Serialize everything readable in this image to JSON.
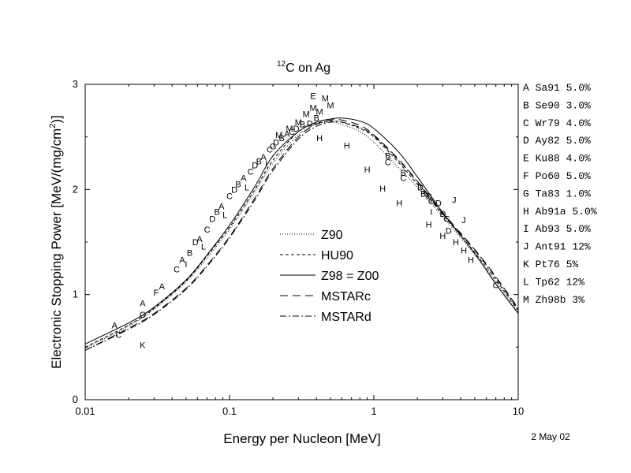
{
  "chart_data": {
    "type": "line",
    "title_prefix": "12",
    "title_main": "C on Ag",
    "xlabel": "Energy per Nucleon [MeV]",
    "ylabel_main": "Electronic Stopping Power [MeV/(mg/cm",
    "ylabel_sup": "2",
    "ylabel_end": ")]",
    "xscale": "log",
    "xlim": [
      0.01,
      10
    ],
    "ylim": [
      0,
      3
    ],
    "x_ticks": [
      {
        "v": 0.01,
        "label": "0.01"
      },
      {
        "v": 0.1,
        "label": "0.1"
      },
      {
        "v": 1,
        "label": "1"
      },
      {
        "v": 10,
        "label": "10"
      }
    ],
    "y_ticks": [
      {
        "v": 0,
        "label": "0"
      },
      {
        "v": 1,
        "label": "1"
      },
      {
        "v": 2,
        "label": "2"
      },
      {
        "v": 3,
        "label": "3"
      }
    ],
    "grid": false,
    "legend_position": "center",
    "series": [
      {
        "name": "Z90",
        "dash": "1,2",
        "x": [
          0.01,
          0.02,
          0.03,
          0.05,
          0.07,
          0.1,
          0.15,
          0.2,
          0.3,
          0.4,
          0.5,
          0.6,
          0.8,
          1,
          1.5,
          2,
          3,
          5,
          7,
          10
        ],
        "y": [
          0.49,
          0.7,
          0.86,
          1.12,
          1.35,
          1.62,
          1.98,
          2.25,
          2.52,
          2.62,
          2.64,
          2.62,
          2.55,
          2.45,
          2.2,
          2.02,
          1.74,
          1.38,
          1.12,
          0.83
        ]
      },
      {
        "name": "HU90",
        "dash": "4,3",
        "x": [
          0.01,
          0.02,
          0.03,
          0.05,
          0.07,
          0.1,
          0.15,
          0.2,
          0.3,
          0.4,
          0.5,
          0.6,
          0.8,
          1,
          1.5,
          2,
          3,
          5,
          7,
          10
        ],
        "y": [
          0.5,
          0.71,
          0.87,
          1.13,
          1.37,
          1.64,
          2.0,
          2.28,
          2.55,
          2.63,
          2.65,
          2.64,
          2.58,
          2.5,
          2.25,
          2.05,
          1.76,
          1.4,
          1.14,
          0.85
        ]
      },
      {
        "name": "Z98 = Z00",
        "dash": "",
        "x": [
          0.01,
          0.02,
          0.03,
          0.05,
          0.07,
          0.1,
          0.15,
          0.2,
          0.3,
          0.4,
          0.5,
          0.6,
          0.8,
          1,
          1.5,
          2,
          3,
          5,
          7,
          10
        ],
        "y": [
          0.53,
          0.73,
          0.88,
          1.14,
          1.38,
          1.66,
          2.03,
          2.32,
          2.55,
          2.64,
          2.67,
          2.68,
          2.65,
          2.58,
          2.35,
          2.12,
          1.78,
          1.39,
          1.1,
          0.82
        ]
      },
      {
        "name": "MSTARc",
        "dash": "10,6",
        "x": [
          0.01,
          0.02,
          0.03,
          0.05,
          0.07,
          0.1,
          0.15,
          0.2,
          0.3,
          0.4,
          0.5,
          0.6,
          0.8,
          1,
          1.5,
          2,
          3,
          5,
          7,
          10
        ],
        "y": [
          0.47,
          0.68,
          0.82,
          1.06,
          1.28,
          1.55,
          1.92,
          2.2,
          2.5,
          2.62,
          2.66,
          2.66,
          2.61,
          2.52,
          2.28,
          2.08,
          1.78,
          1.43,
          1.17,
          0.87
        ]
      },
      {
        "name": "MSTARd",
        "dash": "8,3,2,3",
        "x": [
          0.01,
          0.02,
          0.03,
          0.05,
          0.07,
          0.1,
          0.15,
          0.2,
          0.3,
          0.4,
          0.5,
          0.6,
          0.8,
          1,
          1.5,
          2,
          3,
          5,
          7,
          10
        ],
        "y": [
          0.47,
          0.67,
          0.81,
          1.05,
          1.27,
          1.54,
          1.9,
          2.18,
          2.48,
          2.6,
          2.64,
          2.64,
          2.59,
          2.51,
          2.27,
          2.07,
          1.77,
          1.42,
          1.16,
          0.86
        ]
      }
    ],
    "references": [
      "A Sa91  5.0%",
      "B Se90  3.0%",
      "C Wr79  4.0%",
      "D Ay82  5.0%",
      "E Ku88  4.0%",
      "F Po60  5.0%",
      "G Ta83  1.0%",
      "H Ab91a 5.0%",
      "I Ab93  5.0%",
      "J Ant91 12%",
      "K Pt76  5%",
      "L Tp62  12%",
      "M Zh98b 3%"
    ],
    "markers": [
      {
        "label": "A",
        "x": 0.016,
        "y": 0.71
      },
      {
        "label": "C",
        "x": 0.017,
        "y": 0.62
      },
      {
        "label": "A",
        "x": 0.025,
        "y": 0.92
      },
      {
        "label": "C",
        "x": 0.025,
        "y": 0.81
      },
      {
        "label": "K",
        "x": 0.025,
        "y": 0.52
      },
      {
        "label": "F",
        "x": 0.031,
        "y": 1.02
      },
      {
        "label": "A",
        "x": 0.034,
        "y": 1.08
      },
      {
        "label": "C",
        "x": 0.043,
        "y": 1.24
      },
      {
        "label": "A",
        "x": 0.047,
        "y": 1.33
      },
      {
        "label": "I",
        "x": 0.05,
        "y": 1.29
      },
      {
        "label": "B",
        "x": 0.053,
        "y": 1.4
      },
      {
        "label": "D",
        "x": 0.058,
        "y": 1.5
      },
      {
        "label": "A",
        "x": 0.062,
        "y": 1.53
      },
      {
        "label": "L",
        "x": 0.066,
        "y": 1.46
      },
      {
        "label": "C",
        "x": 0.07,
        "y": 1.62
      },
      {
        "label": "D",
        "x": 0.076,
        "y": 1.72
      },
      {
        "label": "B",
        "x": 0.082,
        "y": 1.79
      },
      {
        "label": "A",
        "x": 0.088,
        "y": 1.84
      },
      {
        "label": "L",
        "x": 0.093,
        "y": 1.76
      },
      {
        "label": "C",
        "x": 0.1,
        "y": 1.94
      },
      {
        "label": "D",
        "x": 0.108,
        "y": 2.0
      },
      {
        "label": "B",
        "x": 0.115,
        "y": 2.05
      },
      {
        "label": "A",
        "x": 0.125,
        "y": 2.11
      },
      {
        "label": "L",
        "x": 0.132,
        "y": 2.02
      },
      {
        "label": "C",
        "x": 0.14,
        "y": 2.17
      },
      {
        "label": "D",
        "x": 0.15,
        "y": 2.23
      },
      {
        "label": "B",
        "x": 0.16,
        "y": 2.27
      },
      {
        "label": "A",
        "x": 0.172,
        "y": 2.31
      },
      {
        "label": "I",
        "x": 0.18,
        "y": 2.25
      },
      {
        "label": "C",
        "x": 0.19,
        "y": 2.38
      },
      {
        "label": "G",
        "x": 0.2,
        "y": 2.41
      },
      {
        "label": "D",
        "x": 0.21,
        "y": 2.45
      },
      {
        "label": "M",
        "x": 0.22,
        "y": 2.52
      },
      {
        "label": "B",
        "x": 0.23,
        "y": 2.49
      },
      {
        "label": "A",
        "x": 0.25,
        "y": 2.53
      },
      {
        "label": "M",
        "x": 0.26,
        "y": 2.58
      },
      {
        "label": "C",
        "x": 0.27,
        "y": 2.55
      },
      {
        "label": "D",
        "x": 0.29,
        "y": 2.58
      },
      {
        "label": "M",
        "x": 0.3,
        "y": 2.64
      },
      {
        "label": "B",
        "x": 0.32,
        "y": 2.62
      },
      {
        "label": "M",
        "x": 0.34,
        "y": 2.72
      },
      {
        "label": "D",
        "x": 0.36,
        "y": 2.63
      },
      {
        "label": "E",
        "x": 0.38,
        "y": 2.89
      },
      {
        "label": "M",
        "x": 0.38,
        "y": 2.78
      },
      {
        "label": "B",
        "x": 0.4,
        "y": 2.68
      },
      {
        "label": "M",
        "x": 0.42,
        "y": 2.74
      },
      {
        "label": "H",
        "x": 0.42,
        "y": 2.49
      },
      {
        "label": "M",
        "x": 0.46,
        "y": 2.87
      },
      {
        "label": "M",
        "x": 0.5,
        "y": 2.8
      },
      {
        "label": "H",
        "x": 0.65,
        "y": 2.42
      },
      {
        "label": "H",
        "x": 0.9,
        "y": 2.19
      },
      {
        "label": "H",
        "x": 1.15,
        "y": 2.01
      },
      {
        "label": "B",
        "x": 1.25,
        "y": 2.32
      },
      {
        "label": "C",
        "x": 1.25,
        "y": 2.26
      },
      {
        "label": "B",
        "x": 1.6,
        "y": 2.16
      },
      {
        "label": "C",
        "x": 1.6,
        "y": 2.11
      },
      {
        "label": "H",
        "x": 1.5,
        "y": 1.87
      },
      {
        "label": "D",
        "x": 2.1,
        "y": 2.02
      },
      {
        "label": "B",
        "x": 2.2,
        "y": 1.96
      },
      {
        "label": "D",
        "x": 2.4,
        "y": 1.94
      },
      {
        "label": "C",
        "x": 2.5,
        "y": 1.89
      },
      {
        "label": "I",
        "x": 2.5,
        "y": 1.79
      },
      {
        "label": "H",
        "x": 2.4,
        "y": 1.67
      },
      {
        "label": "D",
        "x": 2.8,
        "y": 1.87
      },
      {
        "label": "J",
        "x": 3.6,
        "y": 1.9
      },
      {
        "label": "D",
        "x": 3.0,
        "y": 1.77
      },
      {
        "label": "C",
        "x": 3.2,
        "y": 1.72
      },
      {
        "label": "D",
        "x": 3.3,
        "y": 1.61
      },
      {
        "label": "H",
        "x": 3.0,
        "y": 1.56
      },
      {
        "label": "J",
        "x": 4.2,
        "y": 1.71
      },
      {
        "label": "H",
        "x": 3.7,
        "y": 1.5
      },
      {
        "label": "H",
        "x": 4.2,
        "y": 1.42
      },
      {
        "label": "H",
        "x": 4.7,
        "y": 1.33
      },
      {
        "label": "C",
        "x": 7.0,
        "y": 1.09
      }
    ],
    "date_stamp": "2 May 02"
  }
}
